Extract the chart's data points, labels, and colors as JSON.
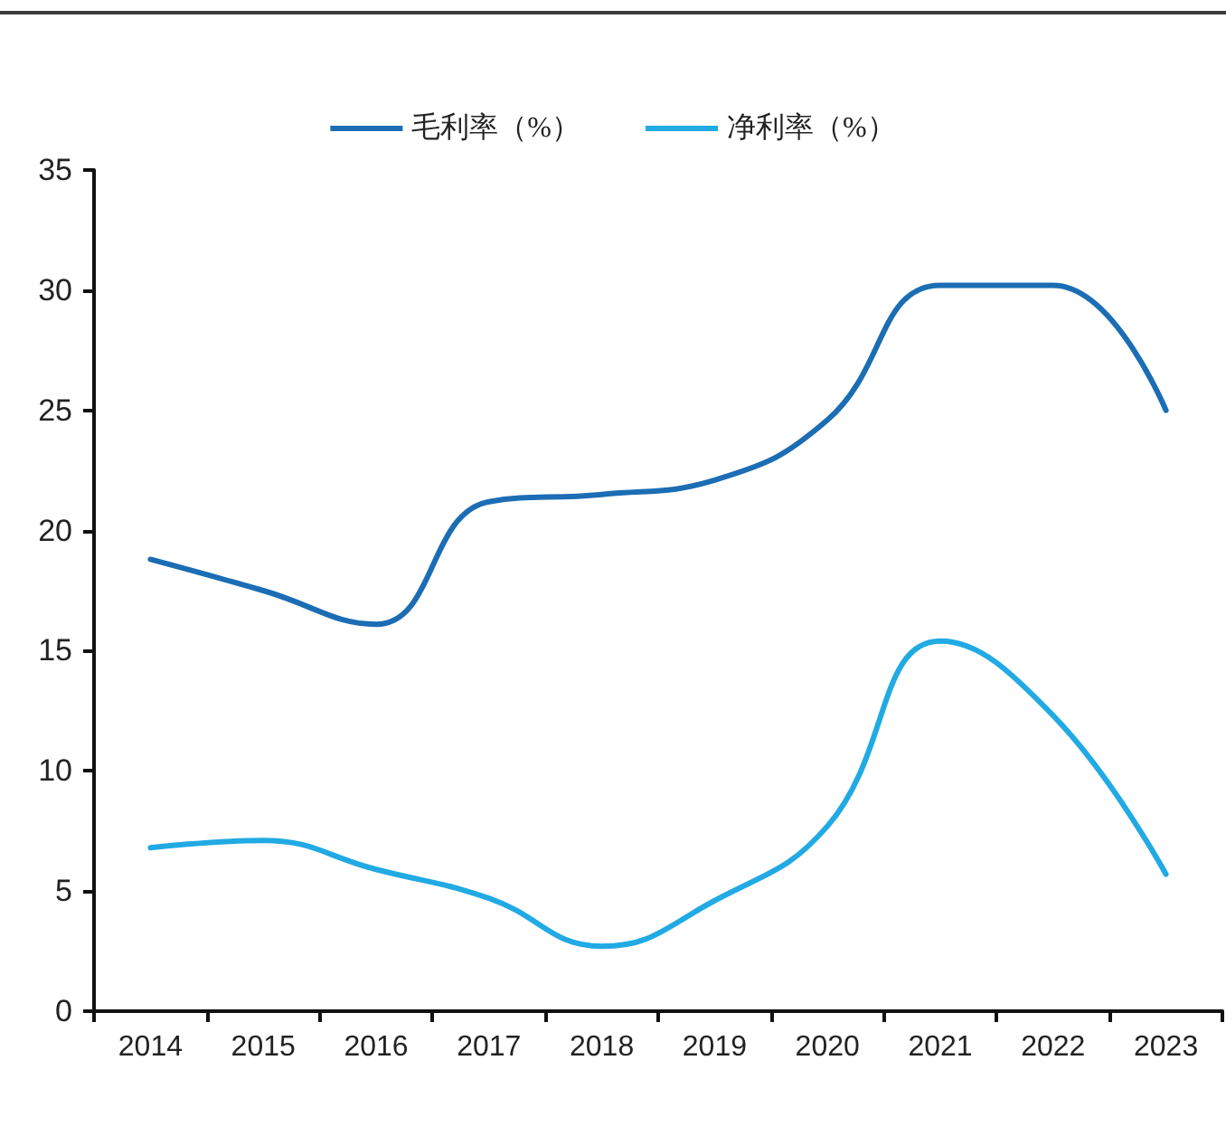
{
  "chart_data": {
    "type": "line",
    "categories": [
      "2014",
      "2015",
      "2016",
      "2017",
      "2018",
      "2019",
      "2020",
      "2021",
      "2022",
      "2023"
    ],
    "series": [
      {
        "name": "毛利率（%）",
        "color": "#1b6db4",
        "values": [
          18.8,
          17.5,
          16.1,
          21.2,
          21.5,
          22.1,
          24.6,
          30.2,
          30.2,
          25.0
        ]
      },
      {
        "name": "净利率（%）",
        "color": "#21aae3",
        "values": [
          6.8,
          7.1,
          5.9,
          4.7,
          2.7,
          4.6,
          7.7,
          15.4,
          12.3,
          5.7
        ]
      }
    ],
    "ylim": [
      0,
      35
    ],
    "yticks": [
      0,
      5,
      10,
      15,
      20,
      25,
      30,
      35
    ],
    "grid": false,
    "legend": "top",
    "marker": "none",
    "line_style": "solid"
  }
}
